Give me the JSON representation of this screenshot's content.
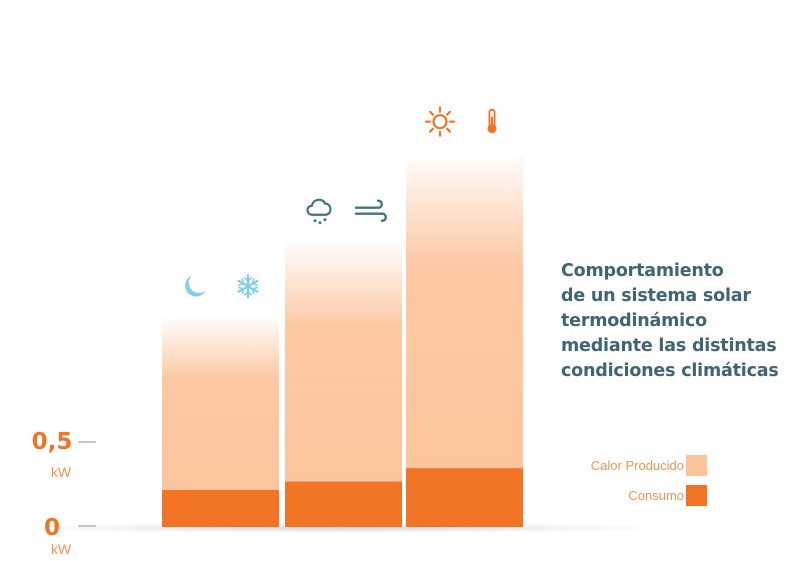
{
  "chart_data": {
    "type": "bar",
    "title_lines": [
      "Comportamiento",
      "de un sistema solar",
      "termodinámico",
      "mediante las distintas",
      "condiciones climáticas"
    ],
    "unit": "kW",
    "y_ticks": [
      {
        "value_label": "0",
        "unit": "kW"
      },
      {
        "value_label": "0,5",
        "unit": "kW"
      }
    ],
    "ylim": [
      0,
      0.5
    ],
    "series": [
      {
        "name": "Calor Producido",
        "color": "#fbc39a",
        "values": [
          1.26,
          1.71,
          2.24
        ]
      },
      {
        "name": "Consumo",
        "color": "#f07424",
        "values": [
          0.22,
          0.27,
          0.35
        ]
      }
    ],
    "conditions": [
      {
        "icons": [
          "moon-icon",
          "snowflake-icon"
        ],
        "color": "#7fcdf0"
      },
      {
        "icons": [
          "rain-cloud-icon",
          "wind-icon"
        ],
        "color": "#3f7584"
      },
      {
        "icons": [
          "sun-icon",
          "thermometer-icon"
        ],
        "color": "#f07424"
      }
    ],
    "grid": false,
    "legend_position": "right"
  }
}
